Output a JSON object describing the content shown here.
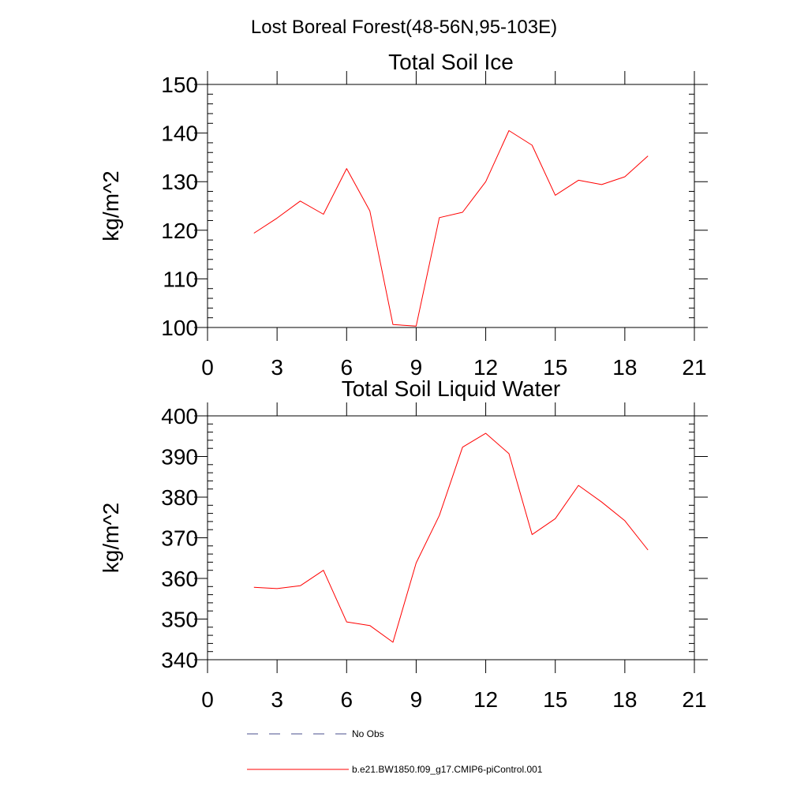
{
  "main_title": "Lost Boreal Forest(48-56N,95-103E)",
  "colors": {
    "model_line": "#ff0000",
    "obs_line": "#4a4f8c",
    "axis": "#000000"
  },
  "chart_data": [
    {
      "type": "line",
      "title": "Total Soil Ice",
      "xlabel": "",
      "ylabel": "kg/m^2",
      "xlim": [
        0,
        21
      ],
      "ylim": [
        100,
        150
      ],
      "x_ticks": [
        0,
        3,
        6,
        9,
        12,
        15,
        18,
        21
      ],
      "y_ticks": [
        100,
        110,
        120,
        130,
        140,
        150
      ],
      "y_minor_step": 2,
      "x": [
        2,
        3,
        4,
        5,
        6,
        7,
        8,
        9,
        10,
        11,
        12,
        13,
        14,
        15,
        16,
        17,
        18,
        19
      ],
      "series": [
        {
          "name": "b.e21.BW1850.f09_g17.CMIP6-piControl.001",
          "values": [
            119.4,
            122.5,
            126.0,
            123.3,
            132.7,
            124.0,
            100.6,
            100.3,
            122.6,
            123.7,
            130.0,
            140.5,
            137.5,
            127.2,
            130.3,
            129.4,
            131.0,
            135.3
          ]
        }
      ]
    },
    {
      "type": "line",
      "title": "Total Soil Liquid Water",
      "xlabel": "",
      "ylabel": "kg/m^2",
      "xlim": [
        0,
        21
      ],
      "ylim": [
        340,
        400
      ],
      "x_ticks": [
        0,
        3,
        6,
        9,
        12,
        15,
        18,
        21
      ],
      "y_ticks": [
        340,
        350,
        360,
        370,
        380,
        390,
        400
      ],
      "y_minor_step": 2,
      "x": [
        2,
        3,
        4,
        5,
        6,
        7,
        8,
        9,
        10,
        11,
        12,
        13,
        14,
        15,
        16,
        17,
        18,
        19
      ],
      "series": [
        {
          "name": "b.e21.BW1850.f09_g17.CMIP6-piControl.001",
          "values": [
            357.8,
            357.5,
            358.2,
            362.0,
            349.3,
            348.4,
            344.3,
            363.8,
            375.5,
            392.3,
            395.7,
            390.7,
            370.8,
            374.7,
            382.9,
            378.8,
            374.2,
            367.0
          ]
        }
      ]
    }
  ],
  "legend": [
    {
      "label": "No Obs",
      "style": "dashed"
    },
    {
      "label": "b.e21.BW1850.f09_g17.CMIP6-piControl.001",
      "style": "solid"
    }
  ]
}
